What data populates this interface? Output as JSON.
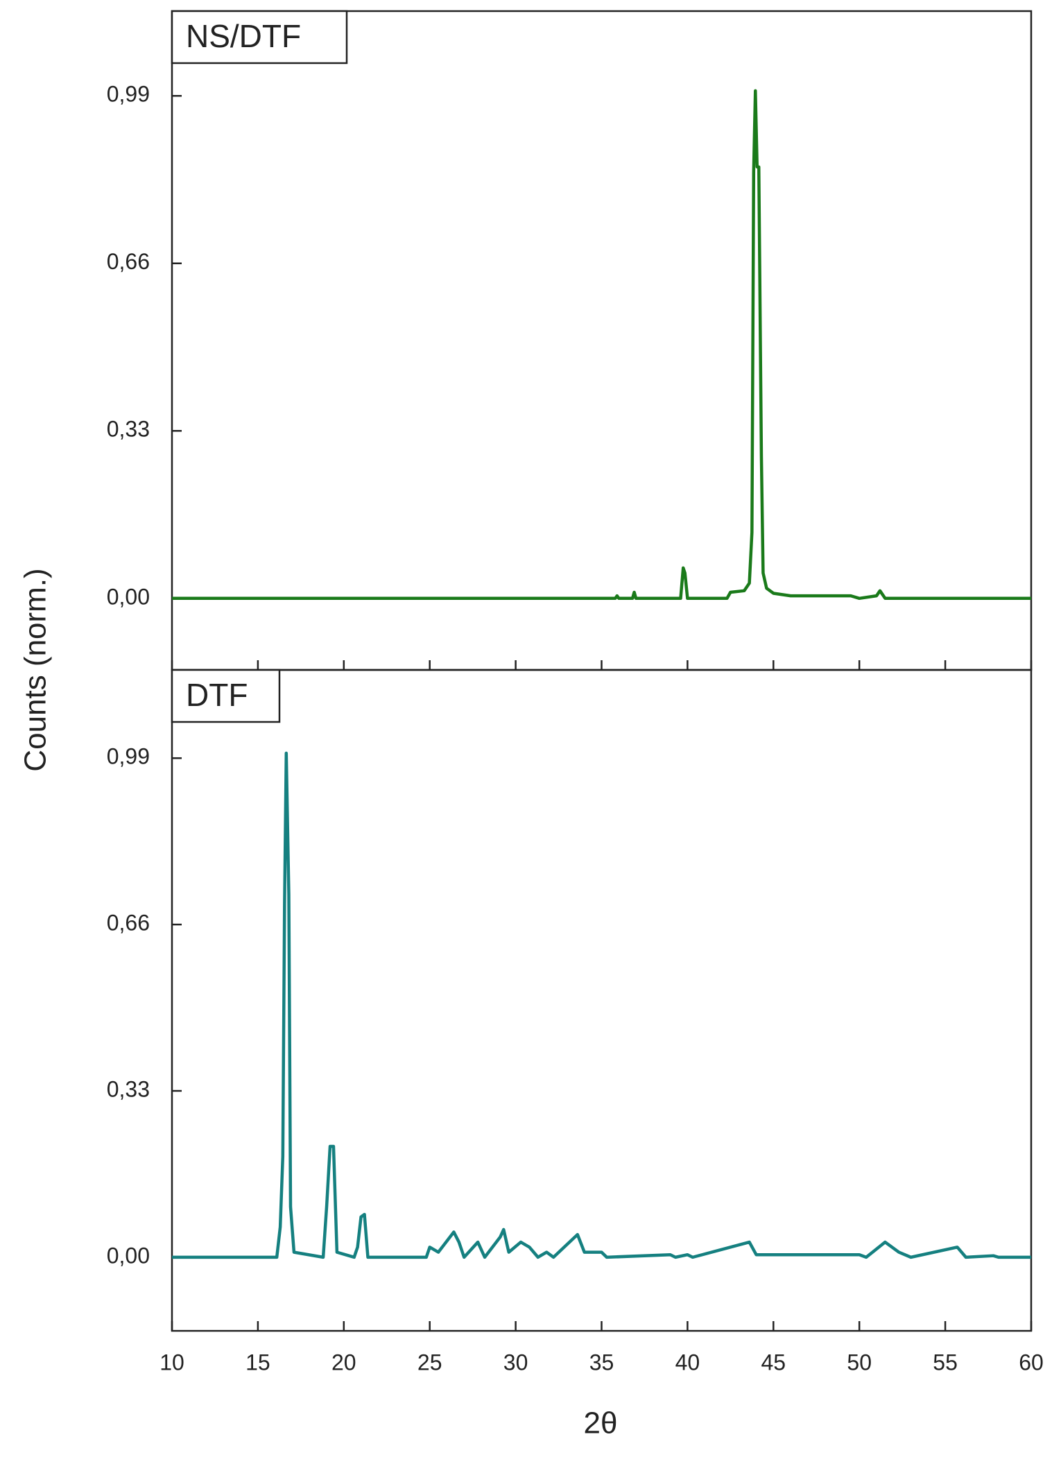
{
  "chart_data": [
    {
      "type": "line",
      "ylabel": "Counts (norm.)",
      "x": [
        10,
        35.8,
        35.9,
        36.0,
        36.8,
        36.9,
        37.0,
        39.6,
        39.75,
        39.85,
        40.0,
        42.3,
        42.5,
        43.3,
        43.6,
        43.75,
        43.85,
        43.95,
        44.05,
        44.15,
        44.3,
        44.4,
        44.6,
        45.0,
        46.0,
        49.5,
        50.0,
        51.0,
        51.2,
        51.5,
        60
      ],
      "series": [
        {
          "name": "NS/DTF",
          "color": "#1a7a1a",
          "values": [
            0,
            0,
            0.005,
            0,
            0,
            0.012,
            0,
            0,
            0.06,
            0.05,
            0,
            0,
            0.012,
            0.015,
            0.03,
            0.13,
            0.84,
            1.0,
            0.85,
            0.85,
            0.28,
            0.05,
            0.02,
            0.01,
            0.005,
            0.005,
            0,
            0.005,
            0.015,
            0,
            0
          ]
        }
      ],
      "xlim": [
        10,
        60
      ],
      "ylim": [
        -0.141,
        1.157
      ],
      "yticks": [
        {
          "value": 0,
          "label": "0,00"
        },
        {
          "value": 0.33,
          "label": "0,33"
        },
        {
          "value": 0.66,
          "label": "0,66"
        },
        {
          "value": 0.99,
          "label": "0,99"
        }
      ]
    },
    {
      "type": "line",
      "xlabel": "2θ",
      "x": [
        10,
        16.1,
        16.3,
        16.45,
        16.55,
        16.65,
        16.8,
        16.9,
        17.1,
        18.8,
        19.0,
        19.2,
        19.4,
        19.6,
        20.6,
        20.8,
        21.0,
        21.2,
        21.4,
        24.8,
        25.0,
        25.5,
        26.4,
        26.7,
        27.0,
        27.8,
        28.2,
        29.1,
        29.3,
        29.6,
        30.3,
        30.8,
        31.3,
        31.8,
        32.2,
        33.6,
        34.0,
        35.0,
        35.3,
        39.0,
        39.3,
        40.0,
        40.3,
        43.6,
        44.0,
        50.0,
        50.4,
        51.5,
        52.3,
        53.0,
        55.7,
        56.2,
        57.8,
        58.1,
        60
      ],
      "series": [
        {
          "name": "DTF",
          "color": "#158080",
          "values": [
            0,
            0,
            0.06,
            0.2,
            0.7,
            1.0,
            0.72,
            0.1,
            0.01,
            0,
            0.1,
            0.22,
            0.22,
            0.01,
            0,
            0.02,
            0.08,
            0.085,
            0,
            0,
            0.02,
            0.01,
            0.05,
            0.03,
            0,
            0.03,
            0,
            0.04,
            0.055,
            0.01,
            0.03,
            0.02,
            0,
            0.01,
            0,
            0.045,
            0.01,
            0.01,
            0,
            0.005,
            0,
            0.005,
            0,
            0.03,
            0.005,
            0.005,
            0,
            0.03,
            0.01,
            0,
            0.02,
            0,
            0.003,
            0,
            0
          ]
        }
      ],
      "xlim": [
        10,
        60
      ],
      "xticks": [
        10,
        15,
        20,
        25,
        30,
        35,
        40,
        45,
        50,
        55,
        60
      ],
      "ylim": [
        -0.146,
        1.165
      ],
      "yticks": [
        {
          "value": 0,
          "label": "0,00"
        },
        {
          "value": 0.33,
          "label": "0,33"
        },
        {
          "value": 0.66,
          "label": "0,66"
        },
        {
          "value": 0.99,
          "label": "0,99"
        }
      ]
    }
  ]
}
